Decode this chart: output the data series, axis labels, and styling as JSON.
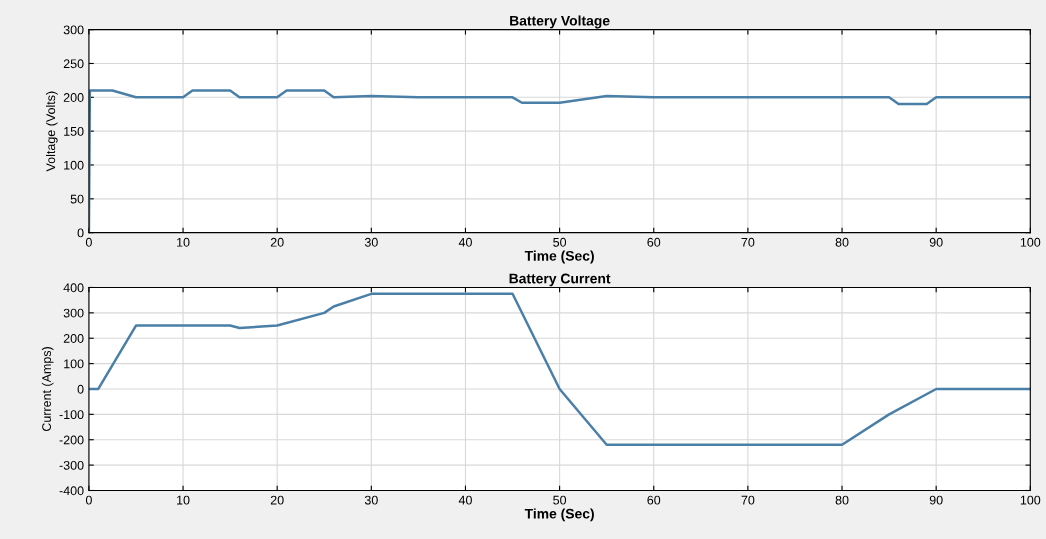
{
  "chart_data": [
    {
      "type": "line",
      "title": "Battery Voltage",
      "xlabel": "Time (Sec)",
      "ylabel": "Voltage (Volts)",
      "xlim": [
        0,
        100
      ],
      "xticks": [
        0,
        10,
        20,
        30,
        40,
        50,
        60,
        70,
        80,
        90,
        100
      ],
      "ylim": [
        0,
        300
      ],
      "yticks": [
        0,
        50,
        100,
        150,
        200,
        250,
        300
      ],
      "grid": true,
      "series": [
        {
          "color": "#4a7fa8",
          "x": [
            0,
            0.1,
            2.5,
            5,
            10,
            11,
            15,
            16,
            20,
            21,
            25,
            26,
            30,
            35,
            45,
            46,
            50,
            55,
            60,
            85,
            86,
            89,
            90,
            100
          ],
          "values": [
            0,
            210,
            210,
            200,
            200,
            210,
            210,
            200,
            200,
            210,
            210,
            200,
            202,
            200,
            200,
            192,
            192,
            202,
            200,
            200,
            190,
            190,
            200,
            200
          ]
        }
      ]
    },
    {
      "type": "line",
      "title": "Battery Current",
      "xlabel": "Time (Sec)",
      "ylabel": "Current (Amps)",
      "xlim": [
        0,
        100
      ],
      "xticks": [
        0,
        10,
        20,
        30,
        40,
        50,
        60,
        70,
        80,
        90,
        100
      ],
      "ylim": [
        -400,
        400
      ],
      "yticks": [
        -400,
        -300,
        -200,
        -100,
        0,
        100,
        200,
        300,
        400
      ],
      "grid": true,
      "series": [
        {
          "color": "#4a7fa8",
          "x": [
            0,
            1,
            5,
            15,
            16,
            20,
            25,
            26,
            30,
            45,
            50,
            55,
            80,
            85,
            90,
            100
          ],
          "values": [
            0,
            0,
            250,
            250,
            240,
            250,
            300,
            325,
            375,
            375,
            0,
            -220,
            -220,
            -100,
            0,
            0
          ]
        }
      ]
    }
  ]
}
